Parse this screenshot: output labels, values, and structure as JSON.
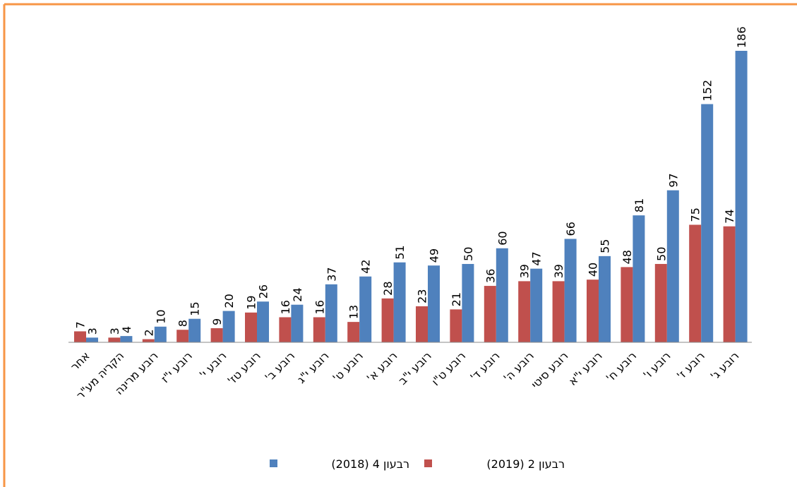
{
  "chart_data": {
    "type": "bar",
    "categories": [
      "אחר",
      "הקריה מע\"ר",
      "רובע מרינה",
      "רובע י\"ז",
      "רובע י'",
      "רובע טז'",
      "רובע ב'",
      "רובע י\"ג",
      "רובע ט'",
      "רובע א'",
      "רובע י\"ב",
      "רובע ט\"ו",
      "רובע ד'",
      "רובע ה'",
      "רובע סיטי",
      "רובע י\"א",
      "רובע ח'",
      "רובע ו'",
      "רובע ז'",
      "רובע ג'"
    ],
    "series": [
      {
        "name": "רבעון 2 (2019)",
        "color": "#c0504d",
        "values": [
          7,
          3,
          2,
          8,
          9,
          19,
          16,
          16,
          13,
          28,
          23,
          21,
          36,
          39,
          39,
          40,
          48,
          50,
          75,
          74
        ]
      },
      {
        "name": "רבעון 4 (2018)",
        "color": "#4f81bd",
        "values": [
          3,
          4,
          10,
          15,
          20,
          26,
          24,
          37,
          42,
          51,
          49,
          50,
          60,
          47,
          66,
          55,
          81,
          97,
          152,
          186
        ]
      }
    ]
  }
}
